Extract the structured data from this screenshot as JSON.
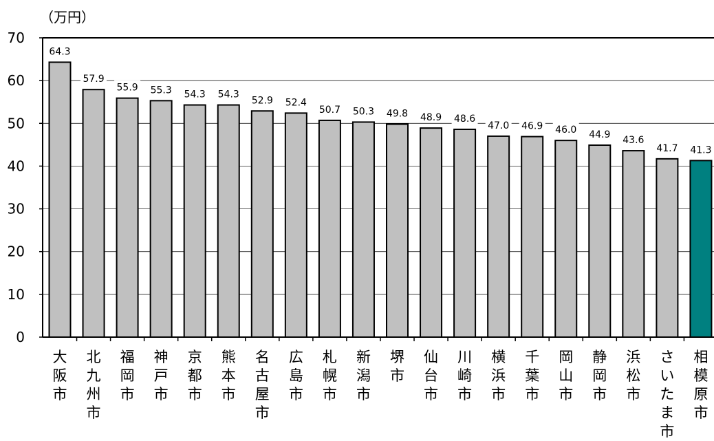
{
  "chart_data": {
    "type": "bar",
    "unit_label": "（万円）",
    "categories": [
      "大阪市",
      "北九州市",
      "福岡市",
      "神戸市",
      "京都市",
      "熊本市",
      "名古屋市",
      "広島市",
      "札幌市",
      "新潟市",
      "堺市",
      "仙台市",
      "川崎市",
      "横浜市",
      "千葉市",
      "岡山市",
      "静岡市",
      "浜松市",
      "さいたま市",
      "相模原市"
    ],
    "values": [
      64.3,
      57.9,
      55.9,
      55.3,
      54.3,
      54.3,
      52.9,
      52.4,
      50.7,
      50.3,
      49.8,
      48.9,
      48.6,
      47.0,
      46.9,
      46.0,
      44.9,
      43.6,
      41.7,
      41.3
    ],
    "value_labels": [
      "64.3",
      "57.9",
      "55.9",
      "55.3",
      "54.3",
      "54.3",
      "52.9",
      "52.4",
      "50.7",
      "50.3",
      "49.8",
      "48.9",
      "48.6",
      "47.0",
      "46.9",
      "46.0",
      "44.9",
      "43.6",
      "41.7",
      "41.3"
    ],
    "ylim": [
      0,
      70
    ],
    "yticks": [
      "0",
      "10",
      "20",
      "30",
      "40",
      "50",
      "60",
      "70"
    ],
    "grid": true,
    "colors": {
      "bar": "#c0c0c0",
      "highlight": "#008080",
      "stroke": "#000000"
    },
    "highlight_category": "相模原市"
  }
}
